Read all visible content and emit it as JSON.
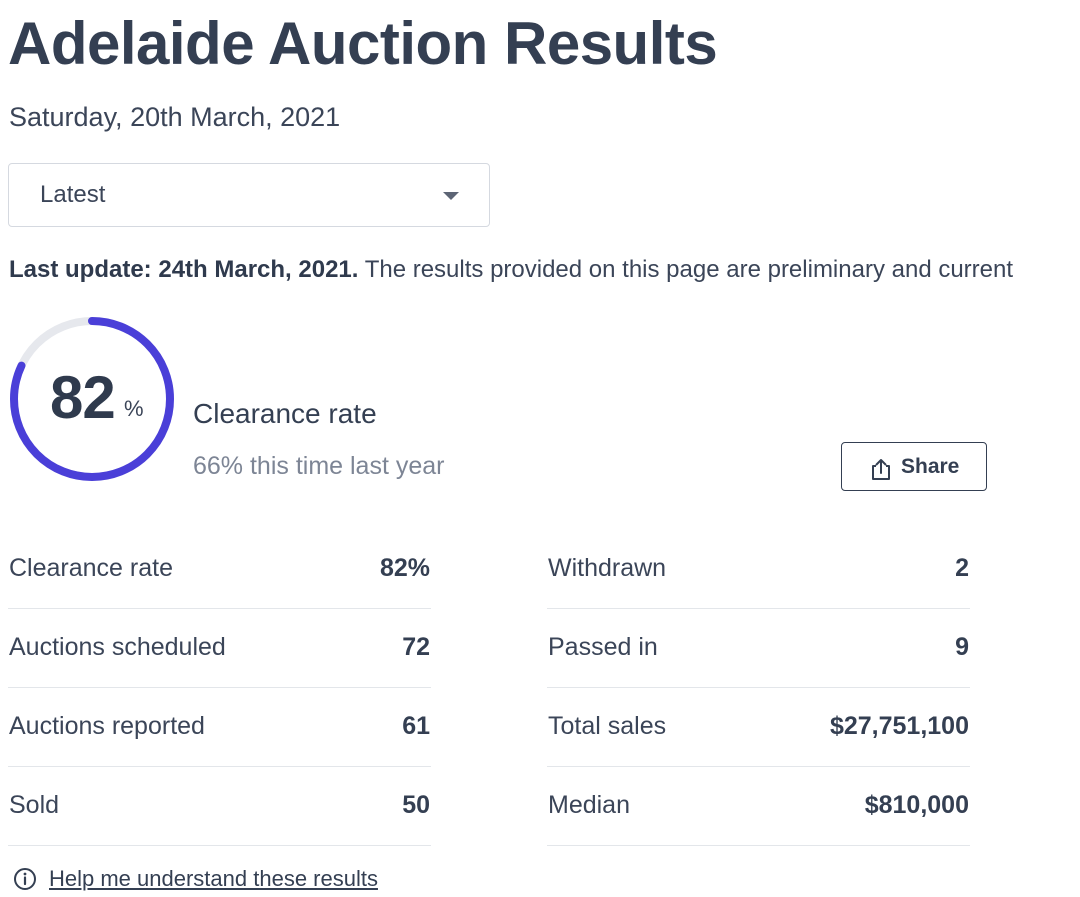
{
  "header": {
    "title": "Adelaide Auction Results",
    "date": "Saturday, 20th March, 2021"
  },
  "filter": {
    "selected": "Latest"
  },
  "update": {
    "bold_text": "Last update: 24th March, 2021.",
    "text": " The results provided on this page are preliminary and current"
  },
  "clearance": {
    "value": 82,
    "value_text": "82",
    "percent_sign": "%",
    "label": "Clearance rate",
    "last_year": "66% this time last year",
    "ring_color": "#4a3fd8",
    "track_color": "#e6e8ed"
  },
  "share": {
    "label": "Share"
  },
  "stats": {
    "left": [
      {
        "label": "Clearance rate",
        "value": "82%"
      },
      {
        "label": "Auctions scheduled",
        "value": "72"
      },
      {
        "label": "Auctions reported",
        "value": "61"
      },
      {
        "label": "Sold",
        "value": "50"
      }
    ],
    "right": [
      {
        "label": "Withdrawn",
        "value": "2"
      },
      {
        "label": "Passed in",
        "value": "9"
      },
      {
        "label": "Total sales",
        "value": "$27,751,100"
      },
      {
        "label": "Median",
        "value": "$810,000"
      }
    ]
  },
  "help": {
    "link": "Help me understand these results"
  }
}
